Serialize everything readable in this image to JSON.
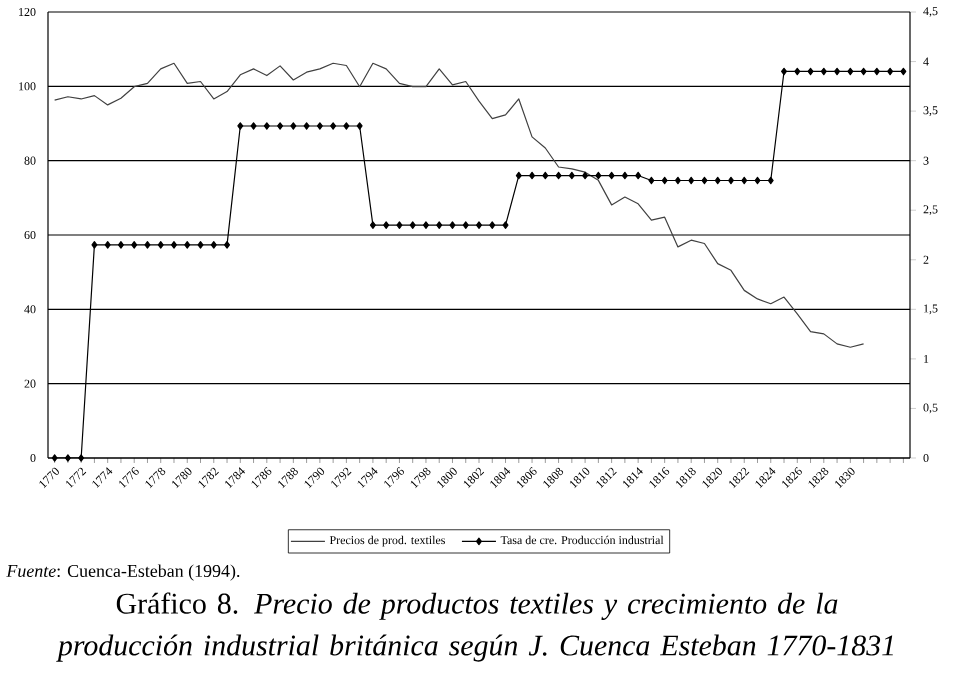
{
  "chart_data": {
    "type": "line",
    "title": "Gráfico 8. *Precio de productos textiles y crecimiento de la producción industrial británica según J. Cuenca Esteban 1770-1831*",
    "annotations": [
      "*Fuente*: Cuenca-Esteban (1994)."
    ],
    "categories": [
      "1770",
      null,
      "1772",
      null,
      "1774",
      null,
      "1776",
      null,
      "1778",
      null,
      "1780",
      null,
      "1782",
      null,
      "1784",
      null,
      "1786",
      null,
      "1788",
      null,
      "1790",
      null,
      "1792",
      null,
      "1794",
      null,
      "1796",
      null,
      "1798",
      null,
      "1800",
      null,
      "1802",
      null,
      "1804",
      null,
      "1806",
      null,
      "1808",
      null,
      "1810",
      null,
      "1812",
      null,
      "1814",
      null,
      "1816",
      null,
      "1818",
      null,
      "1820",
      null,
      "1822",
      null,
      "1824",
      null,
      "1826",
      null,
      "1828",
      null,
      "1830",
      null,
      null,
      null,
      null
    ],
    "series": [
      {
        "name": "Precios de prod. textiles",
        "color": "#404040",
        "marker": "none",
        "line_style": "solid",
        "values": [
          96.3,
          97.2,
          96.6,
          97.5,
          95,
          96.8,
          99.9,
          100.8,
          104.7,
          106.2,
          100.8,
          101.3,
          96.6,
          98.6,
          103.1,
          104.7,
          102.9,
          105.5,
          101.7,
          103.8,
          104.7,
          106.2,
          105.6,
          99.9,
          106.2,
          104.7,
          100.8,
          99.9,
          99.9,
          104.7,
          100.4,
          101.3,
          96,
          91.3,
          92.3,
          96.6,
          86.4,
          83.4,
          78.3,
          77.8,
          76.9,
          74.7,
          68.1,
          70.2,
          68.4,
          64,
          64.8,
          56.8,
          58.6,
          57.7,
          52.3,
          50.5,
          45.1,
          42.8,
          41.5,
          43.3,
          38.8,
          34,
          33.4,
          30.7,
          29.8,
          30.7,
          null,
          null,
          null
        ]
      },
      {
        "name": "Tasa de cre. Producción industrial",
        "color": "#000000",
        "marker": "diamond",
        "line_style": "solid",
        "axis": "y2",
        "values": [
          0,
          0,
          0,
          2.15,
          2.15,
          2.15,
          2.15,
          2.15,
          2.15,
          2.15,
          2.15,
          2.15,
          2.15,
          2.15,
          3.35,
          3.35,
          3.35,
          3.35,
          3.35,
          3.35,
          3.35,
          3.35,
          3.35,
          3.35,
          2.35,
          2.35,
          2.35,
          2.35,
          2.35,
          2.35,
          2.35,
          2.35,
          2.35,
          2.35,
          2.35,
          2.85,
          2.85,
          2.85,
          2.85,
          2.85,
          2.85,
          2.85,
          2.85,
          2.85,
          2.85,
          2.8,
          2.8,
          2.8,
          2.8,
          2.8,
          2.8,
          2.8,
          2.8,
          2.8,
          2.8,
          3.9,
          3.9,
          3.9,
          3.9,
          3.9,
          3.9,
          3.9,
          3.9,
          3.9,
          3.9
        ]
      }
    ],
    "ylim": [
      0,
      120
    ],
    "yticks": [
      0,
      20,
      40,
      60,
      80,
      100,
      120
    ],
    "y2lim": [
      0,
      4.5
    ],
    "y2ticks": [
      0,
      {
        "value": 0.5,
        "label": "0,5"
      },
      1,
      {
        "value": 1.5,
        "label": "1,5"
      },
      2,
      {
        "value": 2.5,
        "label": "2,5"
      },
      3,
      {
        "value": 3.5,
        "label": "3,5"
      },
      4,
      {
        "value": 4.5,
        "label": "4,5"
      }
    ],
    "grid": "y",
    "legend": "bottom"
  }
}
